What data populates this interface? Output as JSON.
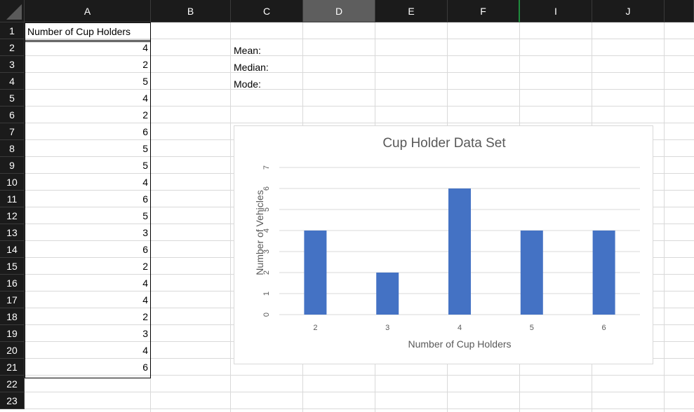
{
  "columns": [
    "A",
    "B",
    "C",
    "D",
    "E",
    "F",
    "I",
    "J"
  ],
  "selected_column": "D",
  "rows": [
    "1",
    "2",
    "3",
    "4",
    "5",
    "6",
    "7",
    "8",
    "9",
    "10",
    "11",
    "12",
    "13",
    "14",
    "15",
    "16",
    "17",
    "18",
    "19",
    "20",
    "21",
    "22",
    "23"
  ],
  "column_a": {
    "header": "Number of Cup Holders",
    "values": [
      "4",
      "2",
      "5",
      "4",
      "2",
      "6",
      "5",
      "5",
      "4",
      "6",
      "5",
      "3",
      "6",
      "2",
      "4",
      "4",
      "2",
      "3",
      "4",
      "6"
    ]
  },
  "stats": {
    "mean_label": "Mean:",
    "median_label": "Median:",
    "mode_label": "Mode:"
  },
  "colors": {
    "bar": "#4472c4",
    "header_bg": "#1b1b1b",
    "selected_header_bg": "#5e5e5e",
    "frozen_line": "#1e8b3c"
  },
  "chart_data": {
    "type": "bar",
    "title": "Cup Holder Data Set",
    "xlabel": "Number of Cup Holders",
    "ylabel": "Number of Vehicles",
    "categories": [
      "2",
      "3",
      "4",
      "5",
      "6"
    ],
    "values": [
      4,
      2,
      6,
      4,
      4
    ],
    "ylim": [
      0,
      7
    ],
    "yticks": [
      "0",
      "1",
      "2",
      "3",
      "4",
      "5",
      "6",
      "7"
    ],
    "grid": true,
    "legend": "none"
  }
}
